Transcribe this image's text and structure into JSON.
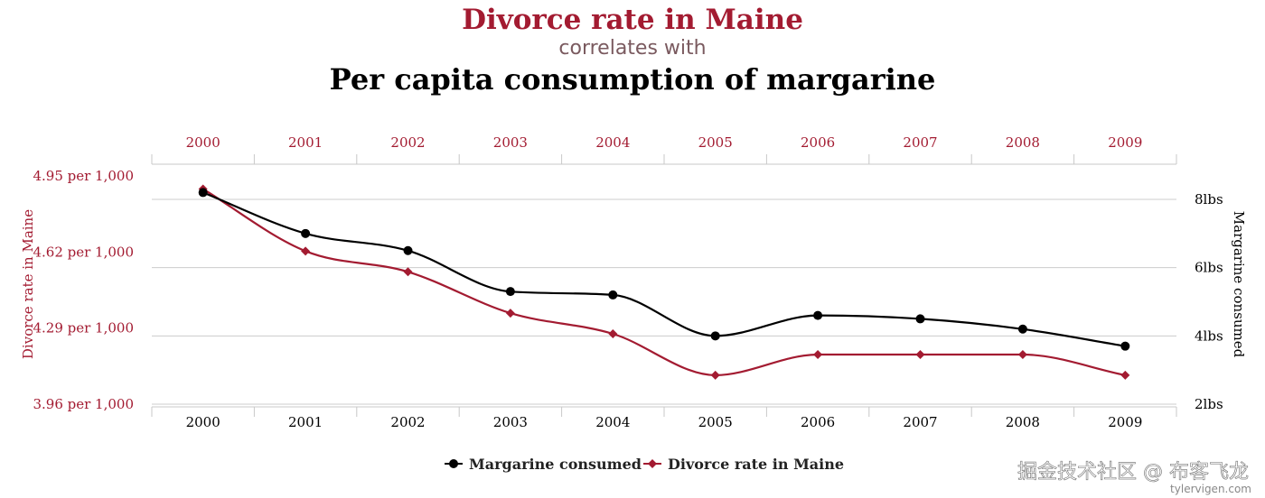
{
  "title": "Divorce rate in Maine",
  "subtitle": "correlates with",
  "title2": "Per capita consumption of margarine",
  "watermark": "掘金技术社区 @ 布客飞龙",
  "credit": "tylervigen.com",
  "colors": {
    "divorce": "#a31b31",
    "margarine": "#000000",
    "grid": "#cccccc",
    "subtitle": "#7a5a5f"
  },
  "chart_data": {
    "type": "line",
    "x": [
      "2000",
      "2001",
      "2002",
      "2003",
      "2004",
      "2005",
      "2006",
      "2007",
      "2008",
      "2009"
    ],
    "y_left": {
      "label": "Divorce rate in Maine",
      "ticks": [
        "4.95 per 1,000",
        "4.62 per 1,000",
        "4.29 per 1,000",
        "3.96 per 1,000"
      ],
      "range": [
        3.96,
        4.95
      ]
    },
    "y_right": {
      "label": "Margarine consumed",
      "ticks": [
        "8lbs",
        "6lbs",
        "4lbs",
        "2lbs"
      ],
      "range": [
        2,
        8
      ]
    },
    "series": [
      {
        "name": "Margarine consumed",
        "axis": "right",
        "color": "#000000",
        "marker": "circle",
        "values": [
          8.2,
          7.0,
          6.5,
          5.3,
          5.2,
          4.0,
          4.6,
          4.5,
          4.2,
          3.7
        ]
      },
      {
        "name": "Divorce rate in Maine",
        "axis": "left",
        "color": "#a31b31",
        "marker": "diamond",
        "values": [
          5.0,
          4.7,
          4.6,
          4.4,
          4.3,
          4.1,
          4.2,
          4.2,
          4.2,
          4.1
        ]
      }
    ],
    "legend_position": "bottom-center",
    "grid": true
  }
}
